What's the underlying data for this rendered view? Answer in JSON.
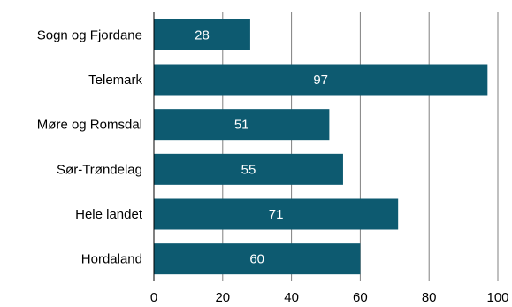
{
  "chart_data": {
    "type": "bar",
    "orientation": "horizontal",
    "categories": [
      "Sogn og Fjordane",
      "Telemark",
      "Møre og Romsdal",
      "Sør-Trøndelag",
      "Hele landet",
      "Hordaland"
    ],
    "values": [
      28,
      97,
      51,
      55,
      71,
      60
    ],
    "data_labels": [
      "28",
      "97",
      "51",
      "55",
      "71",
      "60"
    ],
    "xlim": [
      0,
      100
    ],
    "x_ticks": [
      0,
      20,
      40,
      60,
      80,
      100
    ],
    "x_tick_labels": [
      "0",
      "20",
      "40",
      "60",
      "80",
      "100"
    ],
    "grid": "vertical",
    "legend": "none",
    "title": "",
    "xlabel": "",
    "ylabel": "",
    "colors": {
      "bar": "#0d5a70",
      "grid": "#808080",
      "axis": "#000000",
      "data_label": "#ffffff"
    }
  }
}
